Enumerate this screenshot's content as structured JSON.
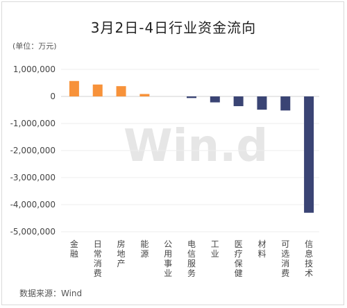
{
  "title": "3月2日-4日行业资金流向",
  "unit_label": "(单位：万元)",
  "source": "数据来源：Wind",
  "watermark": "Win.d",
  "colors": {
    "positive": "#F7923A",
    "negative": "#3A4474",
    "grid": "#eeeeee",
    "zero": "#d0d0d0"
  },
  "chart_data": {
    "type": "bar",
    "title": "3月2日-4日行业资金流向",
    "ylabel": "(单位：万元)",
    "ylim": [
      -5000000,
      1000000
    ],
    "yticks": [
      1000000,
      0,
      -1000000,
      -2000000,
      -3000000,
      -4000000,
      -5000000
    ],
    "ytick_labels": [
      "1,000,000",
      "0",
      "-1,000,000",
      "-2,000,000",
      "-3,000,000",
      "-4,000,000",
      "-5,000,000"
    ],
    "categories": [
      "金融",
      "日常消费",
      "房地产",
      "能源",
      "公用事业",
      "电信服务",
      "工业",
      "医疗保健",
      "材料",
      "可选消费",
      "信息技术"
    ],
    "values": [
      570000,
      440000,
      380000,
      90000,
      0,
      -60000,
      -220000,
      -360000,
      -490000,
      -520000,
      -4300000
    ],
    "grid": true,
    "legend": "none"
  }
}
